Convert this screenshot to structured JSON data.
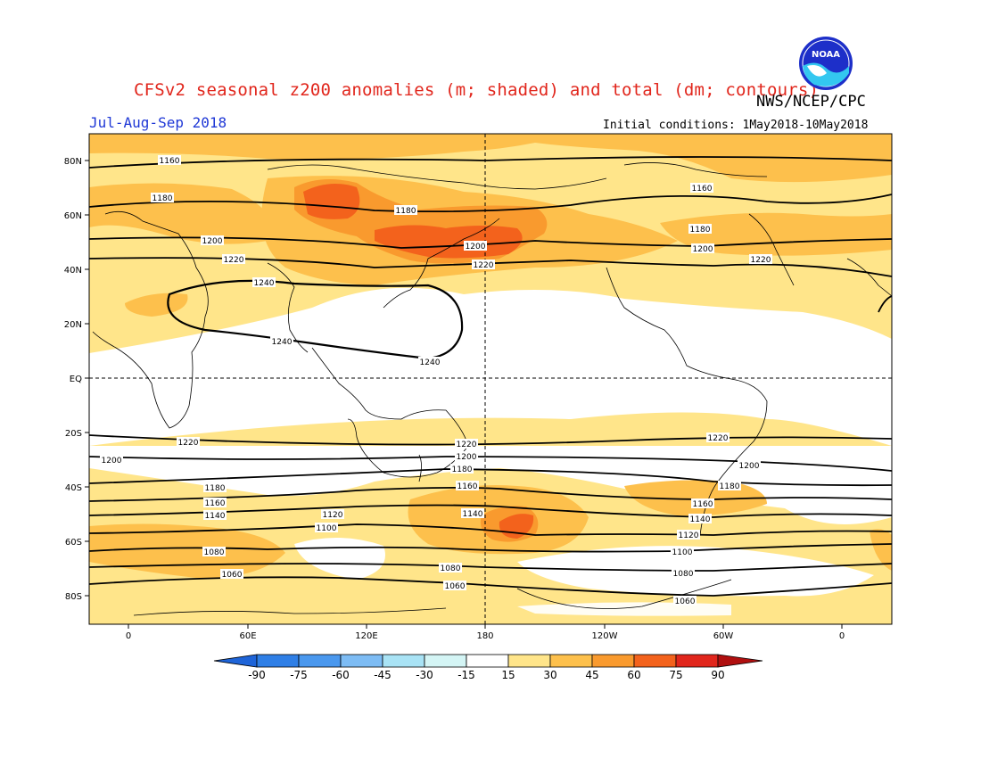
{
  "header": {
    "title": "CFSv2 seasonal z200 anomalies (m; shaded) and total (dm; contours)",
    "agency": "NWS/NCEP/CPC",
    "period": "Jul-Aug-Sep 2018",
    "initial_conditions": "Initial conditions: 1May2018-10May2018",
    "logo_text": "NOAA"
  },
  "map": {
    "lat_labels": [
      "80N",
      "60N",
      "40N",
      "20N",
      "EQ",
      "20S",
      "40S",
      "60S",
      "80S"
    ],
    "lon_labels": [
      "0",
      "60E",
      "120E",
      "180",
      "120W",
      "60W",
      "0"
    ],
    "contour_labels": {
      "nh": [
        "1160",
        "1160",
        "1180",
        "1180",
        "1180",
        "1200",
        "1200",
        "1200",
        "1220",
        "1220",
        "1220",
        "1240",
        "1240",
        "1240"
      ],
      "sh": [
        "1220",
        "1220",
        "1220",
        "1200",
        "1200",
        "1200",
        "1180",
        "1180",
        "1180",
        "1160",
        "1160",
        "1160",
        "1140",
        "1140",
        "1140",
        "1120",
        "1120",
        "1100",
        "1100",
        "1080",
        "1080",
        "1080",
        "1060",
        "1060",
        "1060"
      ]
    }
  },
  "colorbar": {
    "labels": [
      "-90",
      "-75",
      "-60",
      "-45",
      "-30",
      "-15",
      "15",
      "30",
      "45",
      "60",
      "75",
      "90"
    ],
    "colors": [
      "#1e64d8",
      "#2f7fe6",
      "#4a98ee",
      "#7dbcf4",
      "#a9e3f5",
      "#d4f5f5",
      "#ffffff",
      "#ffe58a",
      "#fdc04c",
      "#f99a2e",
      "#f3621c",
      "#e1261c",
      "#b00f0f"
    ]
  }
}
